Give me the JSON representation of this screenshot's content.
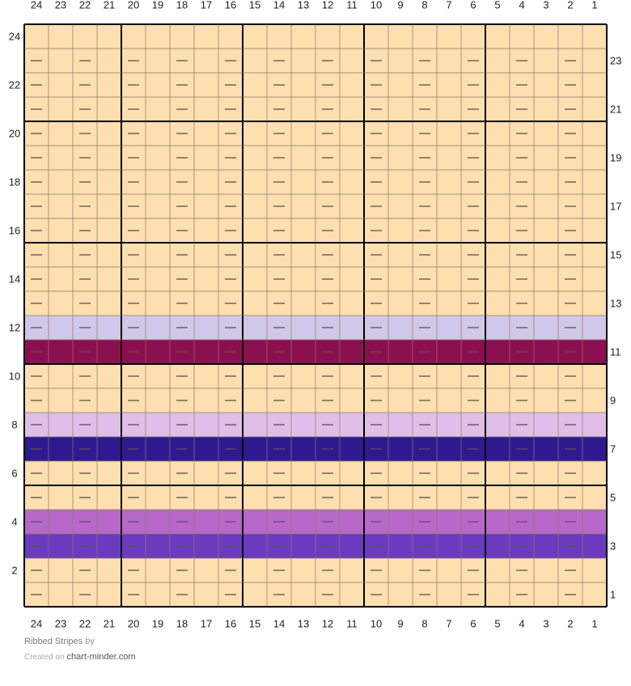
{
  "columns": [
    24,
    23,
    22,
    21,
    20,
    19,
    18,
    17,
    16,
    15,
    14,
    13,
    12,
    11,
    10,
    9,
    8,
    7,
    6,
    5,
    4,
    3,
    2,
    1
  ],
  "rows": [
    {
      "label": 1,
      "color": "#fedfb0",
      "purl": true
    },
    {
      "label": 2,
      "color": "#fedfb0",
      "purl": true
    },
    {
      "label": 3,
      "color": "#6a3bbf",
      "purl": true
    },
    {
      "label": 4,
      "color": "#b868c8",
      "purl": true
    },
    {
      "label": 5,
      "color": "#fedfb0",
      "purl": true
    },
    {
      "label": 6,
      "color": "#fedfb0",
      "purl": true
    },
    {
      "label": 7,
      "color": "#2e1a8e",
      "purl": true
    },
    {
      "label": 8,
      "color": "#dfbfe8",
      "purl": true
    },
    {
      "label": 9,
      "color": "#fedfb0",
      "purl": true
    },
    {
      "label": 10,
      "color": "#fedfb0",
      "purl": true
    },
    {
      "label": 11,
      "color": "#8c1050",
      "purl": true
    },
    {
      "label": 12,
      "color": "#d0c8e8",
      "purl": true
    },
    {
      "label": 13,
      "color": "#fedfb0",
      "purl": true
    },
    {
      "label": 14,
      "color": "#fedfb0",
      "purl": true
    },
    {
      "label": 15,
      "color": "#fedfb0",
      "purl": true
    },
    {
      "label": 16,
      "color": "#fedfb0",
      "purl": true
    },
    {
      "label": 17,
      "color": "#fedfb0",
      "purl": true
    },
    {
      "label": 18,
      "color": "#fedfb0",
      "purl": true
    },
    {
      "label": 19,
      "color": "#fedfb0",
      "purl": true
    },
    {
      "label": 20,
      "color": "#fedfb0",
      "purl": true
    },
    {
      "label": 21,
      "color": "#fedfb0",
      "purl": true
    },
    {
      "label": 22,
      "color": "#fedfb0",
      "purl": true
    },
    {
      "label": 23,
      "color": "#fedfb0",
      "purl": true
    },
    {
      "label": 24,
      "color": "#fedfb0",
      "purl": false
    }
  ],
  "footer": {
    "title": "Ribbed Stripes",
    "by": "by",
    "created": "Created on",
    "site": "chart-minder.com"
  }
}
